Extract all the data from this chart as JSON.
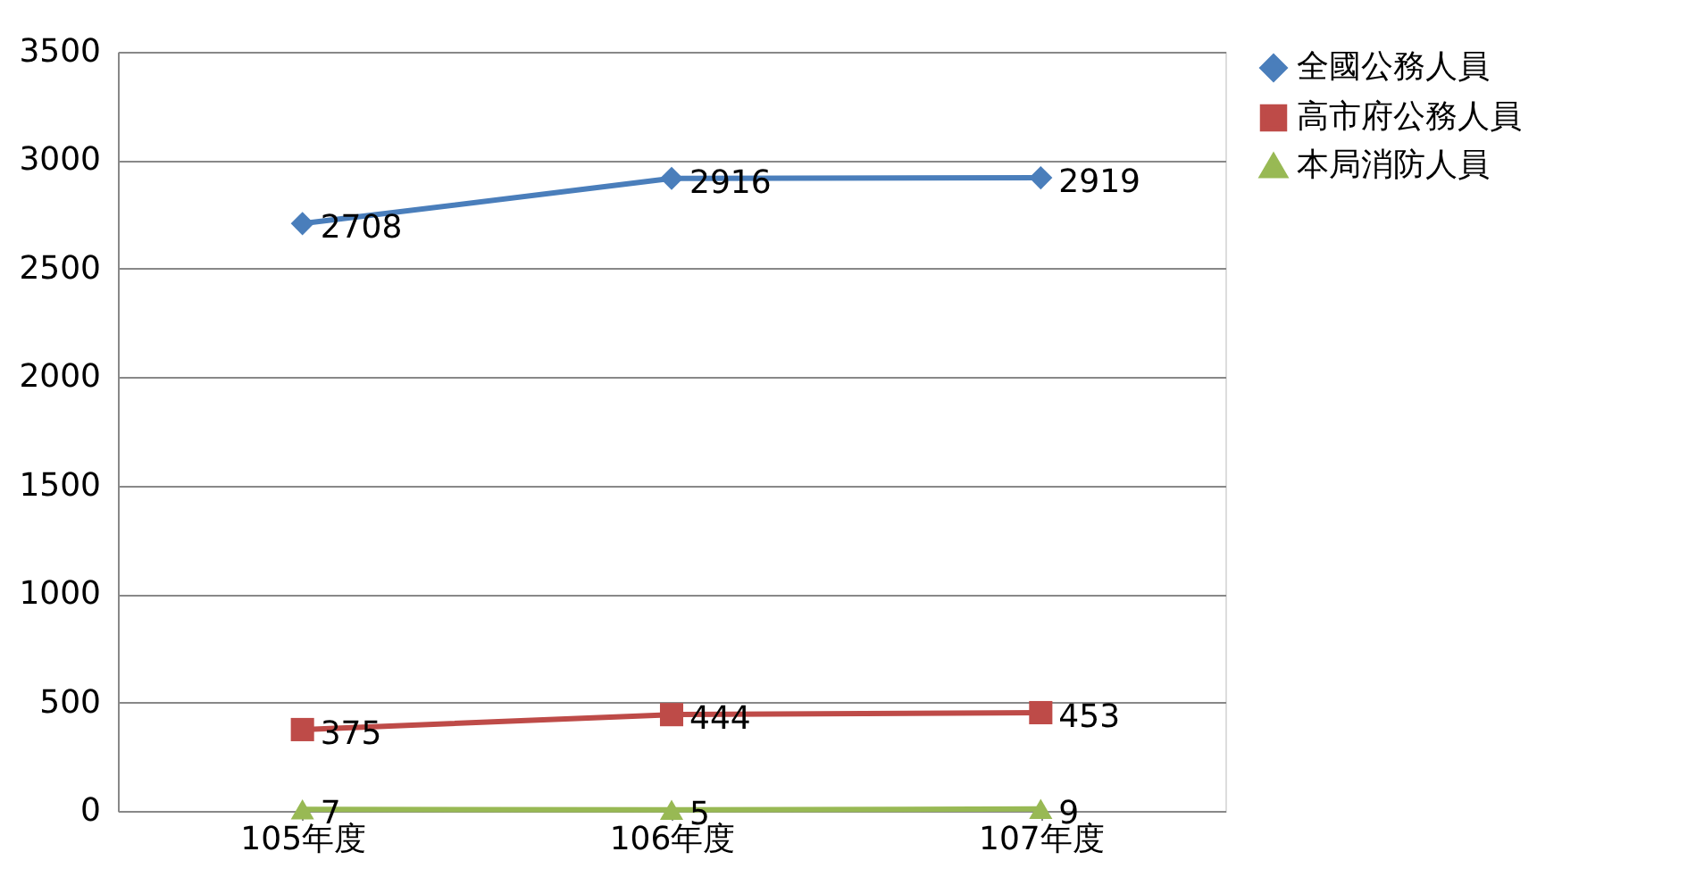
{
  "chart_data": {
    "type": "line",
    "categories": [
      "105年度",
      "106年度",
      "107年度"
    ],
    "series": [
      {
        "name": "全國公務人員",
        "color": "#4a7ebb",
        "marker": "diamond",
        "values": [
          2708,
          2916,
          2919
        ]
      },
      {
        "name": "高市府公務人員",
        "color": "#be4b48",
        "marker": "square",
        "values": [
          375,
          444,
          453
        ]
      },
      {
        "name": "本局消防人員",
        "color": "#98b954",
        "marker": "triangle",
        "values": [
          7,
          5,
          9
        ]
      }
    ],
    "ylim": [
      0,
      3500
    ],
    "yticks": [
      0,
      500,
      1000,
      1500,
      2000,
      2500,
      3000,
      3500
    ],
    "grid": "y",
    "legend": "right",
    "data_labels": true,
    "line_style": "solid"
  }
}
